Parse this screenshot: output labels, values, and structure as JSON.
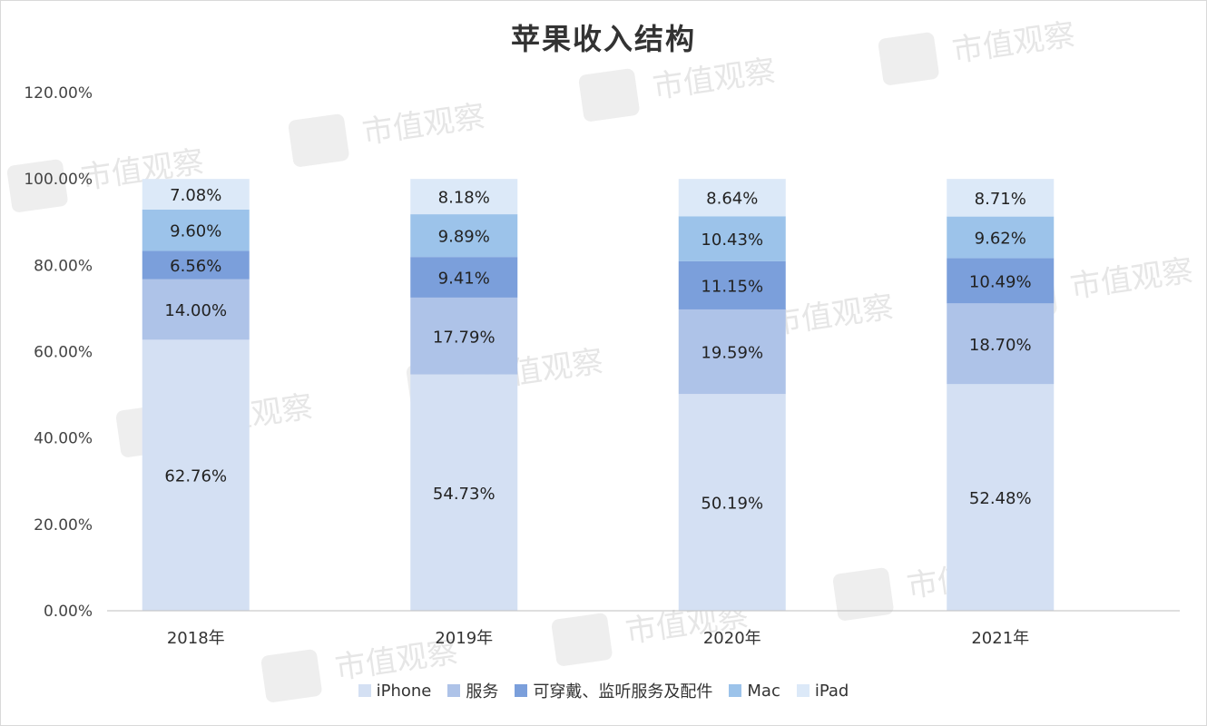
{
  "chart_data": {
    "type": "bar",
    "stacked": true,
    "title": "苹果收入结构",
    "categories": [
      "2018年",
      "2019年",
      "2020年",
      "2021年"
    ],
    "y_ticks": [
      "0.00%",
      "20.00%",
      "40.00%",
      "60.00%",
      "80.00%",
      "100.00%",
      "120.00%"
    ],
    "ylim": [
      0,
      120
    ],
    "grid": false,
    "legend_position": "bottom",
    "series": [
      {
        "name": "iPhone",
        "color": "#d4e0f3",
        "values": [
          62.76,
          54.73,
          50.19,
          52.48
        ],
        "labels": [
          "62.76%",
          "54.73%",
          "50.19%",
          "52.48%"
        ]
      },
      {
        "name": "服务",
        "color": "#aec3e8",
        "values": [
          14.0,
          17.79,
          19.59,
          18.7
        ],
        "labels": [
          "14.00%",
          "17.79%",
          "19.59%",
          "18.70%"
        ]
      },
      {
        "name": "可穿戴、监听服务及配件",
        "color": "#7b9fdb",
        "values": [
          6.56,
          9.41,
          11.15,
          10.49
        ],
        "labels": [
          "6.56%",
          "9.41%",
          "11.15%",
          "10.49%"
        ]
      },
      {
        "name": "Mac",
        "color": "#9cc3ea",
        "values": [
          9.6,
          9.89,
          10.43,
          9.62
        ],
        "labels": [
          "9.60%",
          "9.89%",
          "10.43%",
          "9.62%"
        ]
      },
      {
        "name": "iPad",
        "color": "#dce9f8",
        "values": [
          7.08,
          8.18,
          8.64,
          8.71
        ],
        "labels": [
          "7.08%",
          "8.18%",
          "8.64%",
          "8.71%"
        ]
      }
    ]
  },
  "watermark": {
    "text": "市值观察"
  }
}
